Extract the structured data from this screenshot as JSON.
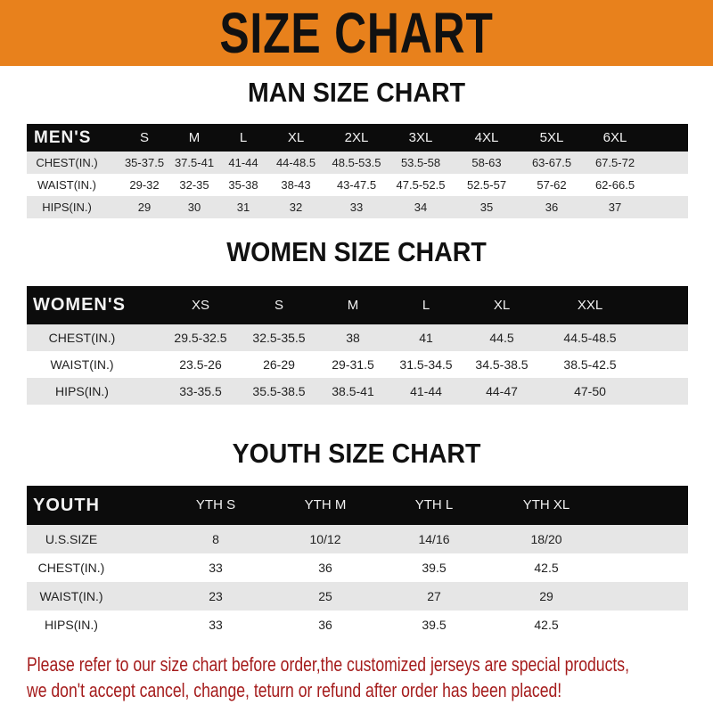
{
  "banner": {
    "title": "SIZE CHART",
    "color": "#e8811c"
  },
  "men": {
    "title": "MAN SIZE CHART",
    "header": [
      "MEN'S",
      "S",
      "M",
      "L",
      "XL",
      "2XL",
      "3XL",
      "4XL",
      "5XL",
      "6XL"
    ],
    "rows": [
      [
        "CHEST(IN.)",
        "35-37.5",
        "37.5-41",
        "41-44",
        "44-48.5",
        "48.5-53.5",
        "53.5-58",
        "58-63",
        "63-67.5",
        "67.5-72"
      ],
      [
        "WAIST(IN.)",
        "29-32",
        "32-35",
        "35-38",
        "38-43",
        "43-47.5",
        "47.5-52.5",
        "52.5-57",
        "57-62",
        "62-66.5"
      ],
      [
        "HIPS(IN.)",
        "29",
        "30",
        "31",
        "32",
        "33",
        "34",
        "35",
        "36",
        "37"
      ]
    ]
  },
  "women": {
    "title": "WOMEN SIZE CHART",
    "header": [
      "WOMEN'S",
      "XS",
      "S",
      "M",
      "L",
      "XL",
      "XXL"
    ],
    "rows": [
      [
        "CHEST(IN.)",
        "29.5-32.5",
        "32.5-35.5",
        "38",
        "41",
        "44.5",
        "44.5-48.5"
      ],
      [
        "WAIST(IN.)",
        "23.5-26",
        "26-29",
        "29-31.5",
        "31.5-34.5",
        "34.5-38.5",
        "38.5-42.5"
      ],
      [
        "HIPS(IN.)",
        "33-35.5",
        "35.5-38.5",
        "38.5-41",
        "41-44",
        "44-47",
        "47-50"
      ]
    ]
  },
  "youth": {
    "title": "YOUTH SIZE CHART",
    "header": [
      "YOUTH",
      "YTH S",
      "YTH M",
      "YTH L",
      "YTH XL"
    ],
    "rows": [
      [
        "U.S.SIZE",
        "8",
        "10/12",
        "14/16",
        "18/20"
      ],
      [
        "CHEST(IN.)",
        "33",
        "36",
        "39.5",
        "42.5"
      ],
      [
        "WAIST(IN.)",
        "23",
        "25",
        "27",
        "29"
      ],
      [
        "HIPS(IN.)",
        "33",
        "36",
        "39.5",
        "42.5"
      ]
    ]
  },
  "notice": {
    "line1": "Please refer to our size chart before order,the customized jerseys are special products,",
    "line2": "we don't accept cancel, change, teturn or refund after order has been placed!",
    "color": "#a51c1c"
  }
}
